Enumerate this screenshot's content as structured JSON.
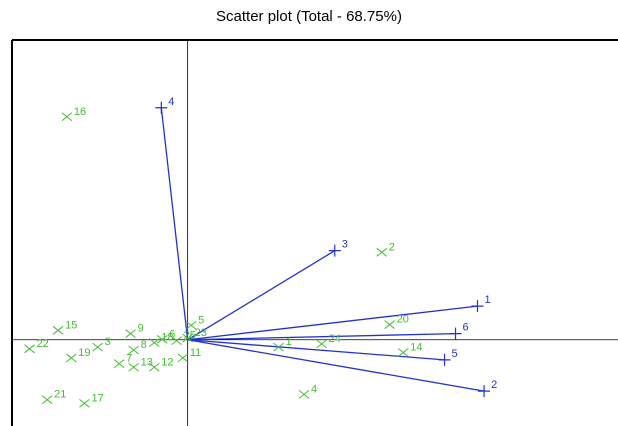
{
  "chart_data": {
    "type": "scatter",
    "title": "Scatter plot (Total - 68.75%)",
    "xlabel": "",
    "ylabel": "",
    "xlim": [
      -4.0,
      9.8
    ],
    "ylim": [
      -2.1,
      7.3
    ],
    "grid": false,
    "legend": "none",
    "colors": {
      "points": "#44bb33",
      "vectors": "#2233cc",
      "point_labels": "#44bb33",
      "vector_labels": "#2233cc",
      "axes": "#000000"
    },
    "series": [
      {
        "marker": "x",
        "points": [
          {
            "label": "1",
            "x": 2.07,
            "y": -0.18
          },
          {
            "label": "2",
            "x": 4.42,
            "y": 2.13
          },
          {
            "label": "3",
            "x": -2.05,
            "y": -0.18
          },
          {
            "label": "4",
            "x": 2.65,
            "y": -1.33
          },
          {
            "label": "5",
            "x": 0.08,
            "y": 0.35
          },
          {
            "label": "6",
            "x": -0.58,
            "y": 0.01
          },
          {
            "label": "7",
            "x": -1.56,
            "y": -0.58
          },
          {
            "label": "8",
            "x": -1.23,
            "y": -0.25
          },
          {
            "label": "9",
            "x": -1.3,
            "y": 0.15
          },
          {
            "label": "11",
            "x": -0.11,
            "y": -0.44
          },
          {
            "label": "12",
            "x": -0.76,
            "y": -0.67
          },
          {
            "label": "13",
            "x": -1.23,
            "y": -0.67
          },
          {
            "label": "14",
            "x": 4.91,
            "y": -0.31
          },
          {
            "label": "15",
            "x": -2.95,
            "y": 0.23
          },
          {
            "label": "16",
            "x": -2.75,
            "y": 5.43
          },
          {
            "label": "17",
            "x": -2.35,
            "y": -1.55
          },
          {
            "label": "18",
            "x": -0.76,
            "y": -0.07
          },
          {
            "label": "19",
            "x": -2.65,
            "y": -0.44
          },
          {
            "label": "20",
            "x": 4.6,
            "y": 0.37
          },
          {
            "label": "21",
            "x": -3.2,
            "y": -1.46
          },
          {
            "label": "22",
            "x": -3.6,
            "y": -0.22
          },
          {
            "label": "23",
            "x": 0.0,
            "y": 0.04
          },
          {
            "label": "24",
            "x": 3.05,
            "y": -0.1
          },
          {
            "label": "25",
            "x": -0.25,
            "y": -0.02
          }
        ]
      },
      {
        "marker": "+",
        "vectors": [
          {
            "label": "1",
            "x": 6.6,
            "y": 0.82
          },
          {
            "label": "2",
            "x": 6.75,
            "y": -1.25
          },
          {
            "label": "3",
            "x": 3.35,
            "y": 2.17
          },
          {
            "label": "4",
            "x": -0.6,
            "y": 5.65
          },
          {
            "label": "5",
            "x": 5.85,
            "y": -0.49
          },
          {
            "label": "6",
            "x": 6.1,
            "y": 0.15
          }
        ]
      }
    ]
  }
}
